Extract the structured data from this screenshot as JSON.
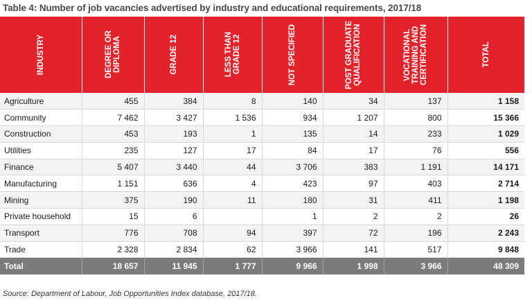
{
  "title": "Table 4: Number of job vacancies advertised by industry and educational requirements, 2017/18",
  "headers": [
    "INDUSTRY",
    "DEGREE OR\nDIPLOMA",
    "GRADE 12",
    "LESS THAN\nGRADE 12",
    "NOT SPECIFIED",
    "POST GRADUATE\nQUALIFICATION",
    "VOCATIONAL\nTRAINING AND\nCERTIFICATION",
    "TOTAL"
  ],
  "rows": [
    [
      "Agriculture",
      "455",
      "384",
      "8",
      "140",
      "34",
      "137",
      "1 158"
    ],
    [
      "Community",
      "7 462",
      "3 427",
      "1 536",
      "934",
      "1 207",
      "800",
      "15 366"
    ],
    [
      "Construction",
      "453",
      "193",
      "1",
      "135",
      "14",
      "233",
      "1 029"
    ],
    [
      "Utilities",
      "235",
      "127",
      "17",
      "84",
      "17",
      "76",
      "556"
    ],
    [
      "Finance",
      "5 407",
      "3 440",
      "44",
      "3 706",
      "383",
      "1 191",
      "14 171"
    ],
    [
      "Manufacturing",
      "1 151",
      "636",
      "4",
      "423",
      "97",
      "403",
      "2 714"
    ],
    [
      "Mining",
      "375",
      "190",
      "11",
      "180",
      "31",
      "411",
      "1 198"
    ],
    [
      "Private household",
      "15",
      "6",
      "",
      "1",
      "2",
      "2",
      "26"
    ],
    [
      "Transport",
      "776",
      "708",
      "94",
      "397",
      "72",
      "196",
      "2 243"
    ],
    [
      "Trade",
      "2 328",
      "2 834",
      "62",
      "3 966",
      "141",
      "517",
      "9 848"
    ]
  ],
  "total": [
    "Total",
    "18 657",
    "11 945",
    "1 777",
    "9 966",
    "1 998",
    "3 966",
    "48 309"
  ],
  "source": "Source: Department of Labour, Job Opportunities Index database, 2017/18.",
  "colors": {
    "header": "#e2232b",
    "total_row": "#7b7b7b"
  }
}
